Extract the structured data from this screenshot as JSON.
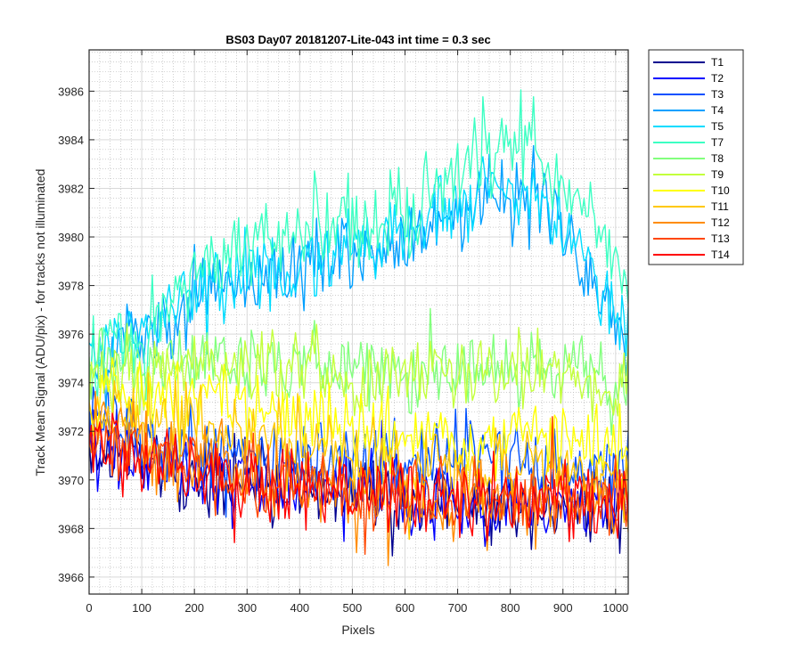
{
  "chart_data": {
    "type": "line",
    "title": "BS03 Day07 20181207-Lite-043 int time = 0.3 sec",
    "xlabel": "Pixels",
    "ylabel": "Track Mean Signal (ADU/pix) - for tracks not illuminated",
    "xlim": [
      0,
      1024
    ],
    "ylim": [
      3965.3,
      3987.7
    ],
    "xticks": [
      0,
      100,
      200,
      300,
      400,
      500,
      600,
      700,
      800,
      900,
      1000
    ],
    "yticks": [
      3966,
      3968,
      3970,
      3972,
      3974,
      3976,
      3978,
      3980,
      3982,
      3984,
      3986
    ],
    "grid": "major-and-minor",
    "legend_position": "outside-top-right",
    "x_sampling": "every 4 pixels, 0 to 1024",
    "series": [
      {
        "name": "T1",
        "color": "#00008f",
        "baseline_pattern": [
          3971.5,
          3970.4,
          3970.0,
          3969.6,
          3969.2,
          3969.0,
          3968.9,
          3969.2
        ],
        "spread": 1.5
      },
      {
        "name": "T2",
        "color": "#0000ff",
        "baseline_pattern": [
          3971.6,
          3970.5,
          3970.1,
          3969.7,
          3969.3,
          3969.1,
          3969.0,
          3969.3
        ],
        "spread": 1.5
      },
      {
        "name": "T3",
        "color": "#0050ff",
        "baseline_pattern": [
          3972.8,
          3971.6,
          3971.2,
          3971.0,
          3970.9,
          3970.9,
          3971.0,
          3971.1,
          3971.2,
          3970.8,
          3970.5
        ],
        "spread": 1.5
      },
      {
        "name": "T4",
        "color": "#00a0ff",
        "baseline_pattern": [
          3975.0,
          3976.0,
          3977.5,
          3978.3,
          3978.6,
          3979.2,
          3979.8,
          3980.5,
          3981.7,
          3981.9,
          3979.5,
          3975.5
        ],
        "spread": 1.6
      },
      {
        "name": "T5",
        "color": "#00dcff",
        "baseline_pattern": [
          3975.0,
          3976.1,
          3977.6,
          3978.4,
          3978.7,
          3979.3,
          3979.9,
          3980.6,
          3981.8,
          3982.0,
          3979.6,
          3975.6
        ],
        "spread": 1.6
      },
      {
        "name": "T7",
        "color": "#3cffc3",
        "baseline_pattern": [
          3974.8,
          3976.2,
          3978.2,
          3979.7,
          3980.1,
          3980.5,
          3980.9,
          3981.9,
          3983.6,
          3983.8,
          3981.7,
          3977.8
        ],
        "spread": 1.9
      },
      {
        "name": "T8",
        "color": "#82ff7d",
        "baseline_pattern": [
          3974.3,
          3974.9,
          3975.0,
          3975.0,
          3974.8,
          3974.6,
          3974.5,
          3974.4,
          3974.6,
          3974.8,
          3974.5,
          3974.0
        ],
        "spread": 1.5
      },
      {
        "name": "T9",
        "color": "#c3ff3c",
        "baseline_pattern": [
          3974.1,
          3974.6,
          3974.8,
          3974.8,
          3974.6,
          3974.4,
          3974.3,
          3974.3,
          3974.5,
          3974.6,
          3974.3,
          3973.8
        ],
        "spread": 1.5
      },
      {
        "name": "T10",
        "color": "#ffff00",
        "baseline_pattern": [
          3973.6,
          3973.8,
          3973.5,
          3973.1,
          3972.7,
          3972.3,
          3971.9,
          3971.7,
          3971.7,
          3971.8,
          3971.6,
          3971.2
        ],
        "spread": 1.5
      },
      {
        "name": "T11",
        "color": "#ffc800",
        "baseline_pattern": [
          3972.9,
          3972.6,
          3972.2,
          3971.8,
          3971.4,
          3971.0,
          3970.8,
          3970.6,
          3970.6,
          3970.6,
          3970.4,
          3970.2
        ],
        "spread": 1.6
      },
      {
        "name": "T12",
        "color": "#ff8c00",
        "baseline_pattern": [
          3972.1,
          3971.4,
          3971.0,
          3970.6,
          3970.2,
          3969.9,
          3969.6,
          3969.4,
          3969.4,
          3969.4,
          3969.3,
          3969.1
        ],
        "spread": 1.6
      },
      {
        "name": "T13",
        "color": "#ff4600",
        "baseline_pattern": [
          3971.7,
          3971.0,
          3970.6,
          3970.2,
          3969.9,
          3969.6,
          3969.4,
          3969.3,
          3969.3,
          3969.3,
          3969.2,
          3969.0
        ],
        "spread": 1.5
      },
      {
        "name": "T14",
        "color": "#ff0000",
        "baseline_pattern": [
          3971.6,
          3970.8,
          3970.4,
          3970.0,
          3969.8,
          3969.6,
          3969.4,
          3969.3,
          3969.3,
          3969.3,
          3969.2,
          3969.0
        ],
        "spread": 1.5
      }
    ]
  }
}
